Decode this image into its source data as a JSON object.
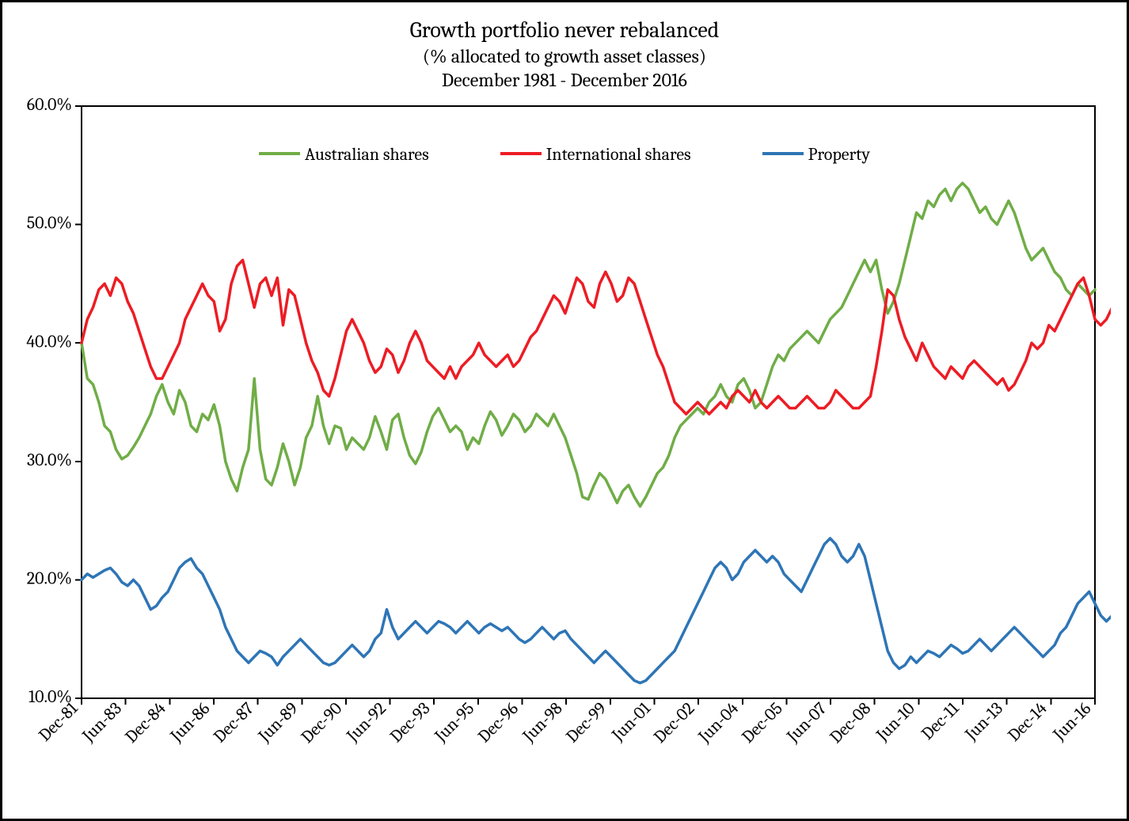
{
  "chart": {
    "type": "line",
    "title_main": "Growth portfolio never rebalanced",
    "title_sub1": "(% allocated to growth asset classes)",
    "title_sub2": "December 1981 - December 2016",
    "title_fontsize_main": 28,
    "title_fontsize_sub": 24,
    "background_color": "#ffffff",
    "frame_color": "#000000",
    "axis_color": "#000000",
    "line_width": 3.5,
    "axis_fontsize": 22,
    "legend_fontsize": 22,
    "ylim": [
      10,
      60
    ],
    "ytick_step": 10,
    "yticks": [
      "10.0%",
      "20.0%",
      "30.0%",
      "40.0%",
      "50.0%",
      "60.0%"
    ],
    "x_start_label": "Dec-81",
    "x_end_label": "Jun-16",
    "xticks": [
      "Dec-81",
      "Jun-83",
      "Dec-84",
      "Jun-86",
      "Dec-87",
      "Jun-89",
      "Dec-90",
      "Jun-92",
      "Dec-93",
      "Jun-95",
      "Dec-96",
      "Jun-98",
      "Dec-99",
      "Jun-01",
      "Dec-02",
      "Jun-04",
      "Dec-05",
      "Jun-07",
      "Dec-08",
      "Jun-10",
      "Dec-11",
      "Jun-13",
      "Dec-14",
      "Jun-16"
    ],
    "series": [
      {
        "name": "Australian shares",
        "color": "#70ad47",
        "values": [
          40.0,
          37.0,
          36.5,
          35.0,
          33.0,
          32.5,
          31.0,
          30.2,
          30.5,
          31.2,
          32.0,
          33.0,
          34.0,
          35.5,
          36.5,
          35.0,
          34.0,
          36.0,
          35.0,
          33.0,
          32.5,
          34.0,
          33.5,
          34.8,
          33.0,
          30.0,
          28.5,
          27.5,
          29.5,
          31.0,
          37.0,
          31.0,
          28.5,
          28.0,
          29.5,
          31.5,
          30.0,
          28.0,
          29.5,
          32.0,
          33.0,
          35.5,
          33.0,
          31.5,
          33.0,
          32.8,
          31.0,
          32.0,
          31.5,
          31.0,
          32.0,
          33.8,
          32.5,
          31.0,
          33.5,
          34.0,
          32.0,
          30.5,
          29.8,
          30.8,
          32.5,
          33.8,
          34.5,
          33.5,
          32.5,
          33.0,
          32.5,
          31.0,
          32.0,
          31.5,
          33.0,
          34.2,
          33.5,
          32.2,
          33.0,
          34.0,
          33.5,
          32.5,
          33.0,
          34.0,
          33.5,
          33.0,
          34.0,
          33.0,
          32.0,
          30.5,
          29.0,
          27.0,
          26.8,
          28.0,
          29.0,
          28.5,
          27.5,
          26.5,
          27.5,
          28.0,
          27.0,
          26.2,
          27.0,
          28.0,
          29.0,
          29.5,
          30.5,
          32.0,
          33.0,
          33.5,
          34.0,
          34.5,
          34.0,
          35.0,
          35.5,
          36.5,
          35.5,
          35.0,
          36.5,
          37.0,
          36.0,
          34.5,
          35.0,
          36.5,
          38.0,
          39.0,
          38.5,
          39.5,
          40.0,
          40.5,
          41.0,
          40.5,
          40.0,
          41.0,
          42.0,
          42.5,
          43.0,
          44.0,
          45.0,
          46.0,
          47.0,
          46.0,
          47.0,
          44.5,
          42.5,
          43.5,
          45.0,
          47.0,
          49.0,
          51.0,
          50.5,
          52.0,
          51.5,
          52.5,
          53.0,
          52.0,
          53.0,
          53.5,
          53.0,
          52.0,
          51.0,
          51.5,
          50.5,
          50.0,
          51.0,
          52.0,
          51.0,
          49.5,
          48.0,
          47.0,
          47.5,
          48.0,
          47.0,
          46.0,
          45.5,
          44.5,
          44.0,
          45.0,
          44.5,
          44.0,
          44.5
        ]
      },
      {
        "name": "International shares",
        "color": "#ed1c24",
        "values": [
          40.0,
          42.0,
          43.0,
          44.5,
          45.0,
          44.0,
          45.5,
          45.0,
          43.5,
          42.5,
          41.0,
          39.5,
          38.0,
          37.0,
          37.0,
          38.0,
          39.0,
          40.0,
          42.0,
          43.0,
          44.0,
          45.0,
          44.0,
          43.5,
          41.0,
          42.0,
          45.0,
          46.5,
          47.0,
          45.0,
          43.0,
          45.0,
          45.5,
          44.0,
          45.5,
          41.5,
          44.5,
          44.0,
          42.0,
          40.0,
          38.5,
          37.5,
          36.0,
          35.5,
          37.0,
          39.0,
          41.0,
          42.0,
          41.0,
          40.0,
          38.5,
          37.5,
          38.0,
          39.5,
          39.0,
          37.5,
          38.5,
          40.0,
          41.0,
          40.0,
          38.5,
          38.0,
          37.5,
          37.0,
          38.0,
          37.0,
          38.0,
          38.5,
          39.0,
          40.0,
          39.0,
          38.5,
          38.0,
          38.5,
          39.0,
          38.0,
          38.5,
          39.5,
          40.5,
          41.0,
          42.0,
          43.0,
          44.0,
          43.5,
          42.5,
          44.0,
          45.5,
          45.0,
          43.5,
          43.0,
          45.0,
          46.0,
          45.0,
          43.5,
          44.0,
          45.5,
          45.0,
          43.5,
          42.0,
          40.5,
          39.0,
          38.0,
          36.5,
          35.0,
          34.5,
          34.0,
          34.5,
          35.0,
          34.5,
          34.0,
          34.5,
          35.0,
          34.5,
          35.5,
          36.0,
          35.5,
          35.0,
          36.0,
          35.0,
          34.5,
          35.0,
          35.5,
          35.0,
          34.5,
          34.5,
          35.0,
          35.5,
          35.0,
          34.5,
          34.5,
          35.0,
          36.0,
          35.5,
          35.0,
          34.5,
          34.5,
          35.0,
          35.5,
          38.0,
          41.0,
          44.5,
          44.0,
          42.0,
          40.5,
          39.5,
          38.5,
          40.0,
          39.0,
          38.0,
          37.5,
          37.0,
          38.0,
          37.5,
          37.0,
          38.0,
          38.5,
          38.0,
          37.5,
          37.0,
          36.5,
          37.0,
          36.0,
          36.5,
          37.5,
          38.5,
          40.0,
          39.5,
          40.0,
          41.5,
          41.0,
          42.0,
          43.0,
          44.0,
          45.0,
          45.5,
          44.0,
          42.0,
          41.5,
          42.0,
          43.0,
          42.5
        ]
      },
      {
        "name": "Property",
        "color": "#2e75b6",
        "values": [
          20.0,
          20.5,
          20.2,
          20.5,
          20.8,
          21.0,
          20.5,
          19.8,
          19.5,
          20.0,
          19.5,
          18.5,
          17.5,
          17.8,
          18.5,
          19.0,
          20.0,
          21.0,
          21.5,
          21.8,
          21.0,
          20.5,
          19.5,
          18.5,
          17.5,
          16.0,
          15.0,
          14.0,
          13.5,
          13.0,
          13.5,
          14.0,
          13.8,
          13.5,
          12.8,
          13.5,
          14.0,
          14.5,
          15.0,
          14.5,
          14.0,
          13.5,
          13.0,
          12.8,
          13.0,
          13.5,
          14.0,
          14.5,
          14.0,
          13.5,
          14.0,
          15.0,
          15.5,
          17.5,
          16.0,
          15.0,
          15.5,
          16.0,
          16.5,
          16.0,
          15.5,
          16.0,
          16.5,
          16.3,
          16.0,
          15.5,
          16.0,
          16.5,
          16.0,
          15.5,
          16.0,
          16.3,
          16.0,
          15.7,
          16.0,
          15.5,
          15.0,
          14.7,
          15.0,
          15.5,
          16.0,
          15.5,
          15.0,
          15.5,
          15.7,
          15.0,
          14.5,
          14.0,
          13.5,
          13.0,
          13.5,
          14.0,
          13.5,
          13.0,
          12.5,
          12.0,
          11.5,
          11.3,
          11.5,
          12.0,
          12.5,
          13.0,
          13.5,
          14.0,
          15.0,
          16.0,
          17.0,
          18.0,
          19.0,
          20.0,
          21.0,
          21.5,
          21.0,
          20.0,
          20.5,
          21.5,
          22.0,
          22.5,
          22.0,
          21.5,
          22.0,
          21.5,
          20.5,
          20.0,
          19.5,
          19.0,
          20.0,
          21.0,
          22.0,
          23.0,
          23.5,
          23.0,
          22.0,
          21.5,
          22.0,
          23.0,
          22.0,
          20.0,
          18.0,
          16.0,
          14.0,
          13.0,
          12.5,
          12.8,
          13.5,
          13.0,
          13.5,
          14.0,
          13.8,
          13.5,
          14.0,
          14.5,
          14.2,
          13.8,
          14.0,
          14.5,
          15.0,
          14.5,
          14.0,
          14.5,
          15.0,
          15.5,
          16.0,
          15.5,
          15.0,
          14.5,
          14.0,
          13.5,
          14.0,
          14.5,
          15.5,
          16.0,
          17.0,
          18.0,
          18.5,
          19.0,
          18.0,
          17.0,
          16.5,
          17.0,
          16.8
        ]
      }
    ]
  }
}
